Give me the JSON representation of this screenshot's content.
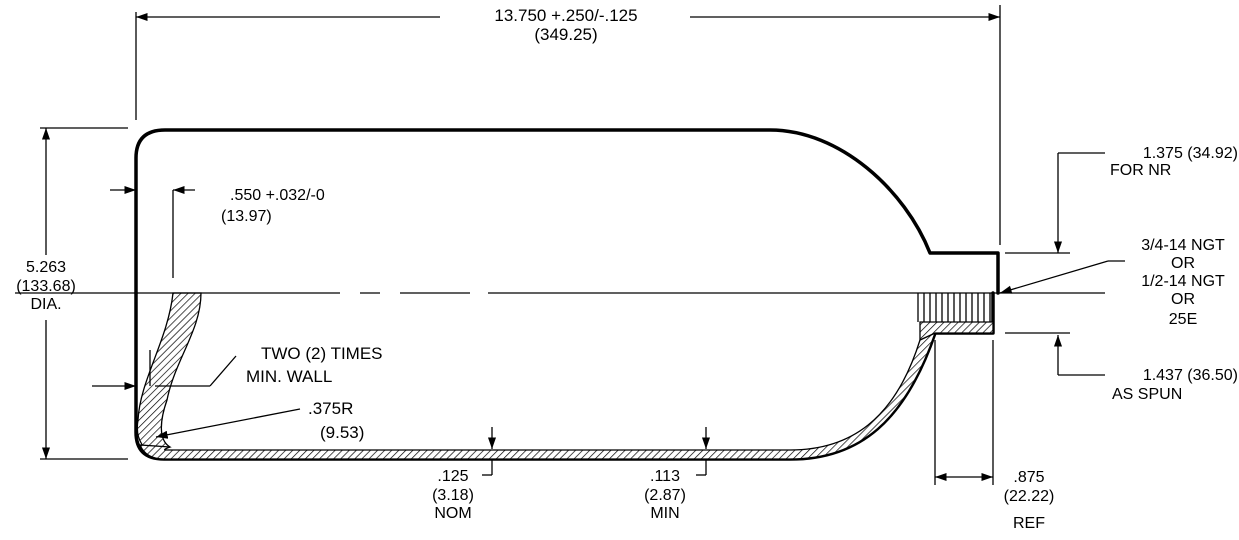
{
  "dimensions": {
    "overall_length": {
      "line1": "13.750 +.250/-.125",
      "line2": "(349.25)"
    },
    "diameter": {
      "line1": "5.263",
      "line2": "(133.68)",
      "line3": "DIA."
    },
    "neck_height_top": {
      "line1": "1.375 (34.92)",
      "line2": "FOR NR"
    },
    "base_thickness": {
      "line1": ".550 +.032/-0",
      "line2": "(13.97)"
    },
    "thread": {
      "line1": "3/4-14 NGT",
      "line2": "OR",
      "line3": "1/2-14 NGT",
      "line4": "OR",
      "line5": "25E"
    },
    "two_times_wall": {
      "line1": "TWO (2) TIMES",
      "line2": "MIN. WALL"
    },
    "neck_height_bottom": {
      "line1": "1.437 (36.50)",
      "line2": "AS SPUN"
    },
    "corner_radius": {
      "line1": ".375R",
      "line2": "(9.53)"
    },
    "wall_nom": {
      "line1": ".125",
      "line2": "(3.18)",
      "line3": "NOM"
    },
    "wall_min": {
      "line1": ".113",
      "line2": "(2.87)",
      "line3": "MIN"
    },
    "neck_length": {
      "line1": ".875",
      "line2": "(22.22)",
      "line3": "REF"
    }
  }
}
